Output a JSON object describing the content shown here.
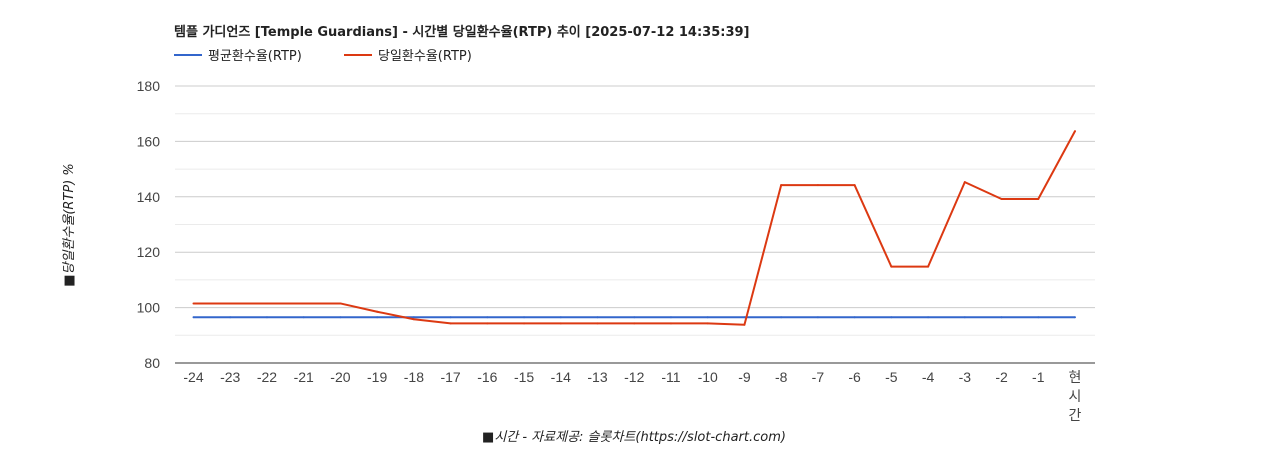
{
  "chart_data": {
    "type": "line",
    "title": "템플 가디언즈 [Temple Guardians] - 시간별 당일환수율(RTP) 추이 [2025-07-12 14:35:39]",
    "xlabel": "■시간 - 자료제공: 슬롯차트(https://slot-chart.com)",
    "ylabel": "■당일환수율(RTP) %",
    "categories": [
      "-24",
      "-23",
      "-22",
      "-21",
      "-20",
      "-19",
      "-18",
      "-17",
      "-16",
      "-15",
      "-14",
      "-13",
      "-12",
      "-11",
      "-10",
      "-9",
      "-8",
      "-7",
      "-6",
      "-5",
      "-4",
      "-3",
      "-2",
      "-1",
      "현시간"
    ],
    "ylim": [
      80,
      180
    ],
    "yticks": [
      80,
      100,
      120,
      140,
      160,
      180
    ],
    "grid": true,
    "legend_position": "top-left",
    "series": [
      {
        "name": "평균환수율(RTP)",
        "color": "#3366cc",
        "values": [
          96.5,
          96.5,
          96.5,
          96.5,
          96.5,
          96.5,
          96.5,
          96.5,
          96.5,
          96.5,
          96.5,
          96.5,
          96.5,
          96.5,
          96.5,
          96.5,
          96.5,
          96.5,
          96.5,
          96.5,
          96.5,
          96.5,
          96.5,
          96.5,
          96.5
        ]
      },
      {
        "name": "당일환수율(RTP)",
        "color": "#dc3912",
        "values": [
          101.5,
          101.5,
          101.5,
          101.5,
          101.5,
          98.5,
          95.8,
          94.3,
          94.3,
          94.3,
          94.3,
          94.3,
          94.3,
          94.3,
          94.3,
          93.8,
          144.2,
          144.2,
          144.2,
          114.8,
          114.8,
          145.3,
          139.2,
          139.2,
          163.7
        ]
      }
    ]
  }
}
